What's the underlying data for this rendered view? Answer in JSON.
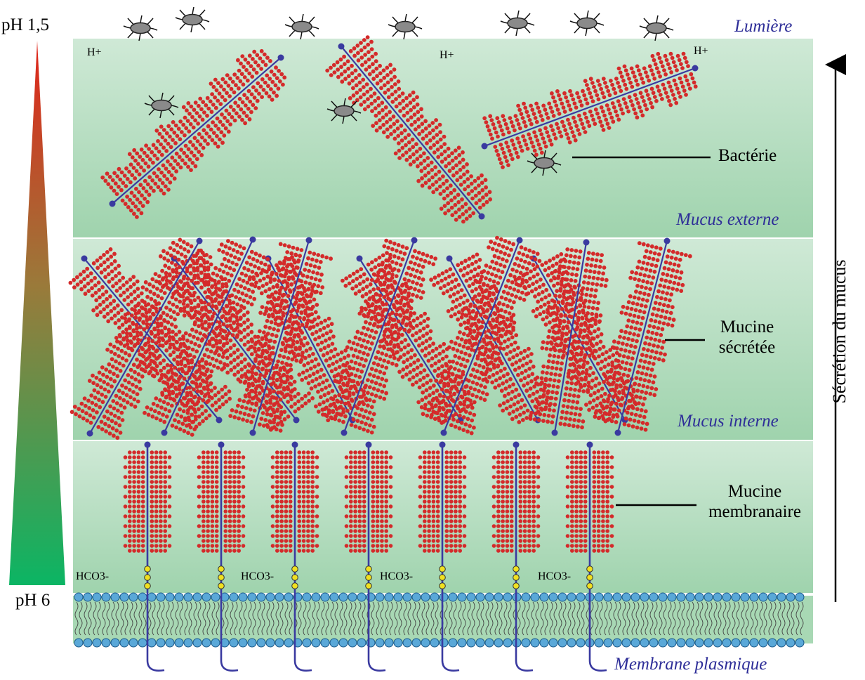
{
  "ph": {
    "top": "pH 1,5",
    "bottom": "pH 6"
  },
  "zones": {
    "lumen": "Lumière",
    "outer_mucus": "Mucus externe",
    "inner_mucus": "Mucus interne",
    "membrane": "Membrane plasmique"
  },
  "labels": {
    "bacteria": "Bactérie",
    "secreted_mucin": [
      "Mucine",
      "sécrétée"
    ],
    "membrane_mucin": [
      "Mucine",
      "membranaire"
    ],
    "secretion": "Sécrétion du mucus"
  },
  "ions": {
    "proton": "H+",
    "bicarbonate": "HCO3-"
  },
  "colors": {
    "mucin_beads": "#d42a2a",
    "backbone": "#3a3aa0",
    "layer_green": "#a8d8b4",
    "zone_text": "#2e2e98",
    "membrane_head": "#5aa8d8",
    "anchor_yellow": "#f0e020",
    "gradient_top": "#e02a1a",
    "gradient_bottom": "#10b060"
  },
  "icons": {
    "bacterium": "bacterium-icon",
    "arrow": "arrow-up-icon"
  }
}
